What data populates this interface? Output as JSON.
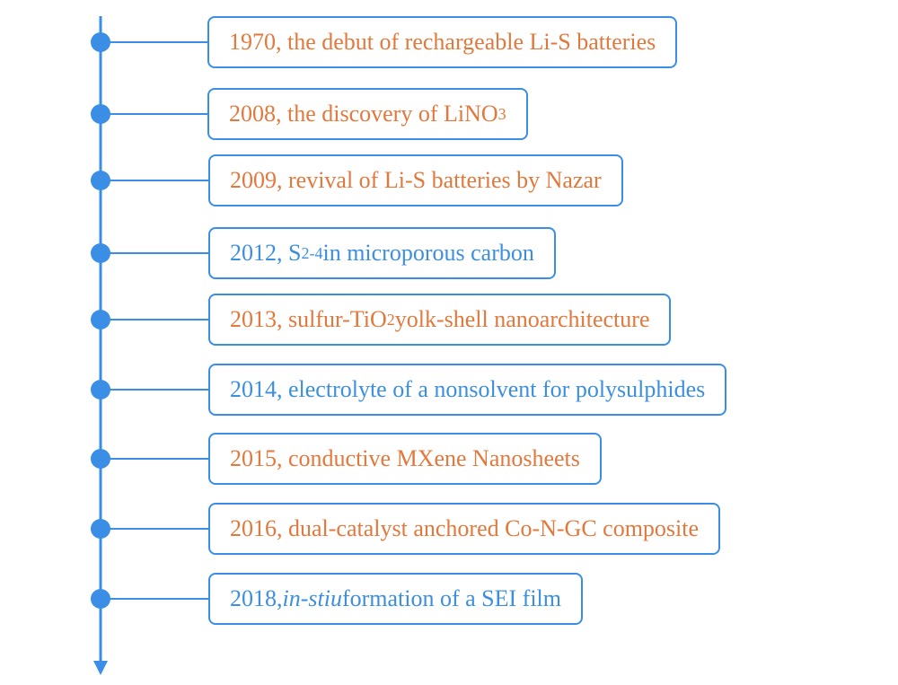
{
  "events": [
    {
      "color": "#e3783c",
      "parts": [
        {
          "text": "1970, the debut of rechargeable Li-S batteries"
        }
      ]
    },
    {
      "color": "#e3783c",
      "parts": [
        {
          "text": "2008, the discovery of LiNO"
        },
        {
          "text": "3",
          "style": "sub"
        }
      ]
    },
    {
      "color": "#e3783c",
      "parts": [
        {
          "text": "2009, revival of Li-S batteries by Nazar"
        }
      ]
    },
    {
      "color": "#3c8fe0",
      "parts": [
        {
          "text": "2012, S"
        },
        {
          "text": "2-4",
          "style": "sub"
        },
        {
          "text": " in microporous carbon"
        }
      ]
    },
    {
      "color": "#e3783c",
      "parts": [
        {
          "text": "2013, sulfur-TiO"
        },
        {
          "text": "2",
          "style": "sub"
        },
        {
          "text": " yolk-shell nanoarchitecture"
        }
      ]
    },
    {
      "color": "#3c8fe0",
      "parts": [
        {
          "text": "2014, electrolyte of a nonsolvent for polysulphides"
        }
      ]
    },
    {
      "color": "#e3783c",
      "parts": [
        {
          "text": "2015, conductive MXene Nanosheets"
        }
      ]
    },
    {
      "color": "#e3783c",
      "parts": [
        {
          "text": "2016, dual-catalyst anchored Co-N-GC composite"
        }
      ]
    },
    {
      "color": "#3c8fe0",
      "parts": [
        {
          "text": "2018, "
        },
        {
          "text": "in-stiu",
          "style": "italic"
        },
        {
          "text": " formation of a SEI film"
        }
      ]
    }
  ]
}
